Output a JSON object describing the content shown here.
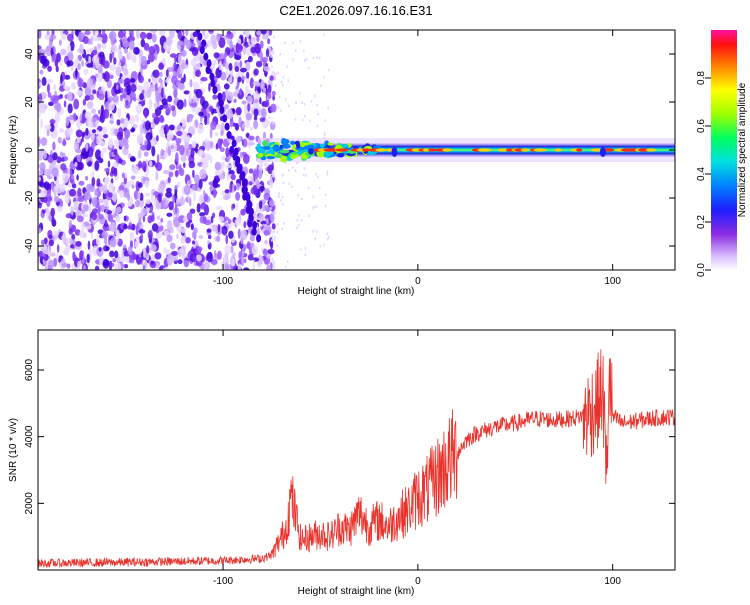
{
  "title": "C2E1.2026.097.16.16.E31",
  "colors": {
    "snr_line": "#e8322b",
    "axis": "#000000"
  },
  "chart_data": [
    {
      "type": "heatmap",
      "title": "C2E1.2026.097.16.16.E31",
      "xlabel": "Height of straight line (km)",
      "ylabel": "Frequency (Hz)",
      "xlim": [
        -195,
        132
      ],
      "ylim": [
        -50,
        50
      ],
      "xticks": [
        -100,
        0,
        100
      ],
      "xtick_labels": [
        "-100",
        "0",
        "100"
      ],
      "yticks": [
        -40,
        -20,
        0,
        20,
        40
      ],
      "ytick_labels": [
        "-40",
        "-20",
        "0",
        "20",
        "40"
      ],
      "colorbar": {
        "label": "Normalized spectral amplitude",
        "range": [
          0,
          1
        ],
        "ticks": [
          0.0,
          0.2,
          0.4,
          0.6,
          0.8
        ],
        "tick_labels": [
          "0.0",
          "0.2",
          "0.4",
          "0.6",
          "0.8"
        ]
      },
      "features": [
        {
          "name": "diffuse low-amplitude speckle",
          "height_range_km": [
            -195,
            -77
          ],
          "freq_range_hz": [
            -50,
            50
          ],
          "amplitude": [
            0.05,
            0.25
          ]
        },
        {
          "name": "carrier line",
          "height_range_km": [
            -82,
            132
          ],
          "center_freq_hz": 0,
          "peak_amplitude": 1.0
        }
      ]
    },
    {
      "type": "line",
      "xlabel": "Height of straight line (km)",
      "ylabel": "SNR (10 * v/v)",
      "xlim": [
        -195,
        132
      ],
      "ylim": [
        0,
        7200
      ],
      "xticks": [
        -100,
        0,
        100
      ],
      "xtick_labels": [
        "-100",
        "0",
        "100"
      ],
      "yticks": [
        2000,
        4000,
        6000
      ],
      "ytick_labels": [
        "2000",
        "4000",
        "6000"
      ],
      "series": [
        {
          "name": "SNR",
          "x": [
            -195,
            -150,
            -100,
            -80,
            -75,
            -68,
            -65,
            -60,
            -55,
            -50,
            -45,
            -40,
            -35,
            -30,
            -25,
            -20,
            -15,
            -10,
            -5,
            0,
            5,
            10,
            15,
            20,
            25,
            30,
            40,
            50,
            60,
            70,
            80,
            88,
            92,
            95,
            97,
            98,
            100,
            105,
            110,
            120,
            132
          ],
          "values": [
            200,
            230,
            280,
            350,
            450,
            1200,
            2200,
            900,
            1000,
            1100,
            1000,
            1300,
            1200,
            1700,
            1300,
            1500,
            1300,
            1600,
            1800,
            2200,
            2400,
            2800,
            3200,
            3500,
            3900,
            4100,
            4300,
            4400,
            4550,
            4500,
            4550,
            4700,
            5000,
            5400,
            2500,
            6000,
            4600,
            4400,
            4450,
            4550,
            4600
          ]
        }
      ]
    }
  ]
}
